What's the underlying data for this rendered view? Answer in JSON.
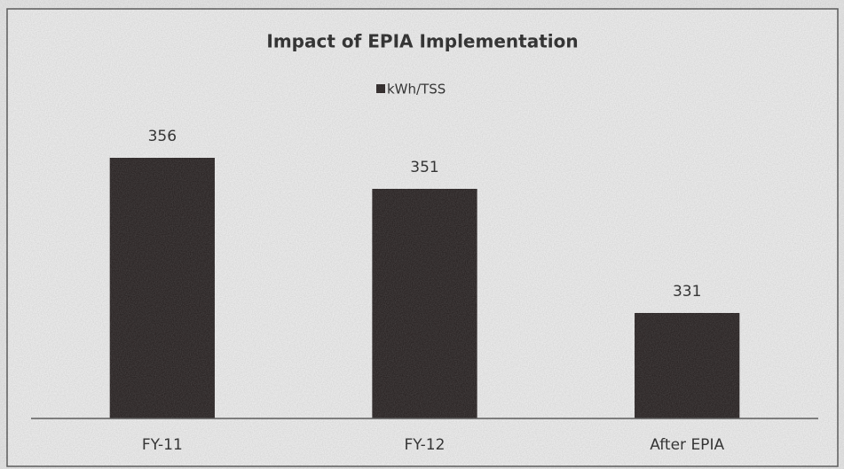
{
  "chart_data": {
    "type": "bar",
    "title": "Impact of EPIA Implementation",
    "categories": [
      "FY-11",
      "FY-12",
      "After EPIA"
    ],
    "series": [
      {
        "name": "kWh/TSS",
        "color": "#2b2525",
        "values": [
          356,
          351,
          331
        ]
      }
    ],
    "ylim": [
      314,
      360
    ],
    "legend": "top"
  }
}
